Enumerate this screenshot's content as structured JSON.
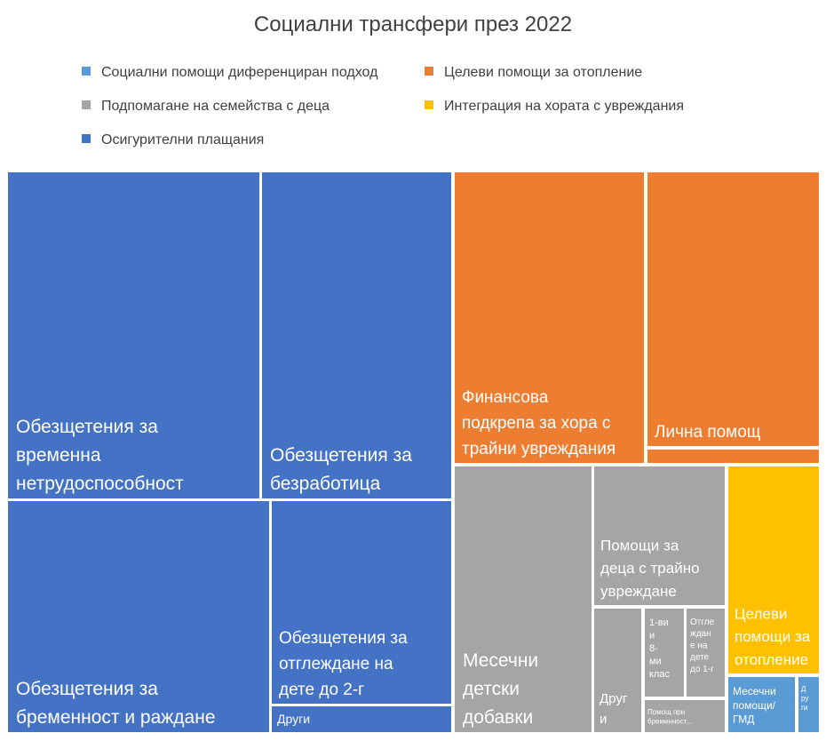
{
  "chart_data": {
    "type": "treemap",
    "title": "Социални трансфери през 2022",
    "legend": [
      {
        "name": "Социални помощи диференциран подход",
        "color": "#5B9BD5"
      },
      {
        "name": "Целеви помощи за отопление",
        "color": "#ED7D31"
      },
      {
        "name": "Подпомагане на семейства с деца",
        "color": "#A5A5A5"
      },
      {
        "name": "Интеграция  на хората с увреждания",
        "color": "#FFC000"
      },
      {
        "name": "Осигурителни плащания",
        "color": "#4472C4"
      }
    ],
    "legend_position": "top",
    "groups": [
      {
        "name": "Осигурителни плащания",
        "color": "#4472C4",
        "items": [
          {
            "label": "Обезщетения за временна нетрудоспособност",
            "value": 1054
          },
          {
            "label": "Обезщетения за безработица",
            "value": 783
          },
          {
            "label": "Обезщетения за бременност и раждане",
            "value": 1041
          },
          {
            "label": "Обезщетения за отглеждане на дете до 2-г",
            "value": 667
          },
          {
            "label": "Други",
            "value": 58
          }
        ]
      },
      {
        "name": "Интеграция  на хората с увреждания",
        "color": "#FFC000",
        "items": [
          {
            "label": "Финансова подкрепа за хора с трайни увреждания",
            "value": 705
          },
          {
            "label": "Лична помощ",
            "value": 628
          },
          {
            "label": "",
            "value": 34
          }
        ]
      },
      {
        "name": "Подпомагане на семейства с деца",
        "color": "#A5A5A5",
        "items": [
          {
            "label": "Месечни детски добавки",
            "value": 493
          },
          {
            "label": "Помощи за деца с трайно увреждане",
            "value": 250
          },
          {
            "label": "Друг и",
            "value": 82
          },
          {
            "label": "1-ви и 8-ми клас",
            "value": 45
          },
          {
            "label": "Отглеждане на дете до 1-г",
            "value": 45
          },
          {
            "label": "Помощ при бременност...",
            "value": 31
          }
        ]
      },
      {
        "name": "Целеви помощи за отопление",
        "color": "#ED7D31",
        "items": [
          {
            "label": "Целеви помощи за отопление",
            "value": 248
          }
        ]
      },
      {
        "name": "Социални помощи диференциран подход",
        "color": "#5B9BD5",
        "items": [
          {
            "label": "Месечни помощи/ ГМД",
            "value": 65
          },
          {
            "label": "Д ру ги",
            "value": 20
          }
        ]
      }
    ]
  }
}
